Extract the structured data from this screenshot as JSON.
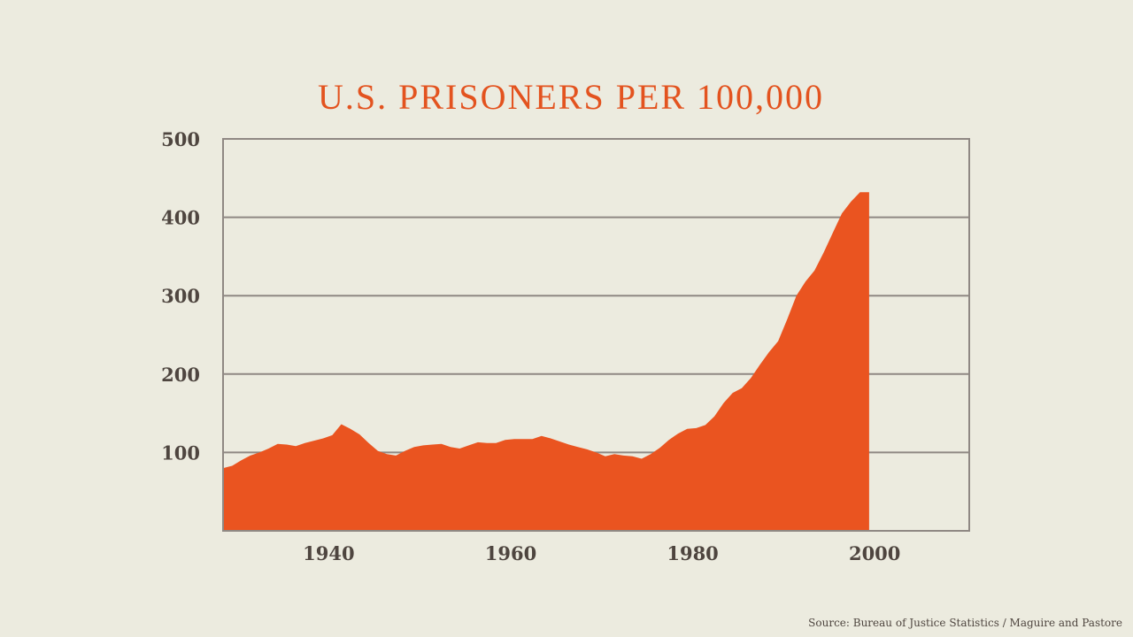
{
  "chart_data": {
    "type": "area",
    "title": "U.S. PRISONERS PER 100,000",
    "xlabel": "",
    "ylabel": "",
    "xlim": [
      1928,
      2010
    ],
    "ylim": [
      0,
      500
    ],
    "xticks": [
      1940,
      1960,
      1980,
      2000
    ],
    "yticks": [
      100,
      200,
      300,
      400,
      500
    ],
    "grid": true,
    "fill_color": "#ea5420",
    "x": [
      1928,
      1929,
      1930,
      1931,
      1932,
      1933,
      1934,
      1935,
      1936,
      1937,
      1938,
      1939,
      1940,
      1941,
      1942,
      1943,
      1944,
      1945,
      1946,
      1947,
      1948,
      1949,
      1950,
      1951,
      1952,
      1953,
      1954,
      1955,
      1956,
      1957,
      1958,
      1959,
      1960,
      1961,
      1962,
      1963,
      1964,
      1965,
      1966,
      1967,
      1968,
      1969,
      1970,
      1971,
      1972,
      1973,
      1974,
      1975,
      1976,
      1977,
      1978,
      1979,
      1980,
      1981,
      1982,
      1983,
      1984,
      1985,
      1986,
      1987,
      1988,
      1989,
      1990,
      1991,
      1992,
      1993,
      1994,
      1995,
      1996,
      1997,
      1998,
      1999
    ],
    "values": [
      80,
      83,
      90,
      96,
      100,
      105,
      111,
      110,
      108,
      112,
      115,
      118,
      122,
      136,
      130,
      123,
      112,
      102,
      98,
      96,
      102,
      107,
      109,
      110,
      111,
      107,
      105,
      109,
      113,
      112,
      112,
      116,
      117,
      117,
      117,
      121,
      118,
      114,
      110,
      107,
      104,
      100,
      95,
      98,
      96,
      95,
      92,
      98,
      106,
      116,
      124,
      130,
      131,
      135,
      146,
      163,
      176,
      182,
      195,
      212,
      228,
      242,
      270,
      300,
      318,
      332,
      355,
      380,
      405,
      420,
      432,
      432
    ]
  },
  "source": "Source: Bureau of Justice Statistics / Maguire and Pastore"
}
